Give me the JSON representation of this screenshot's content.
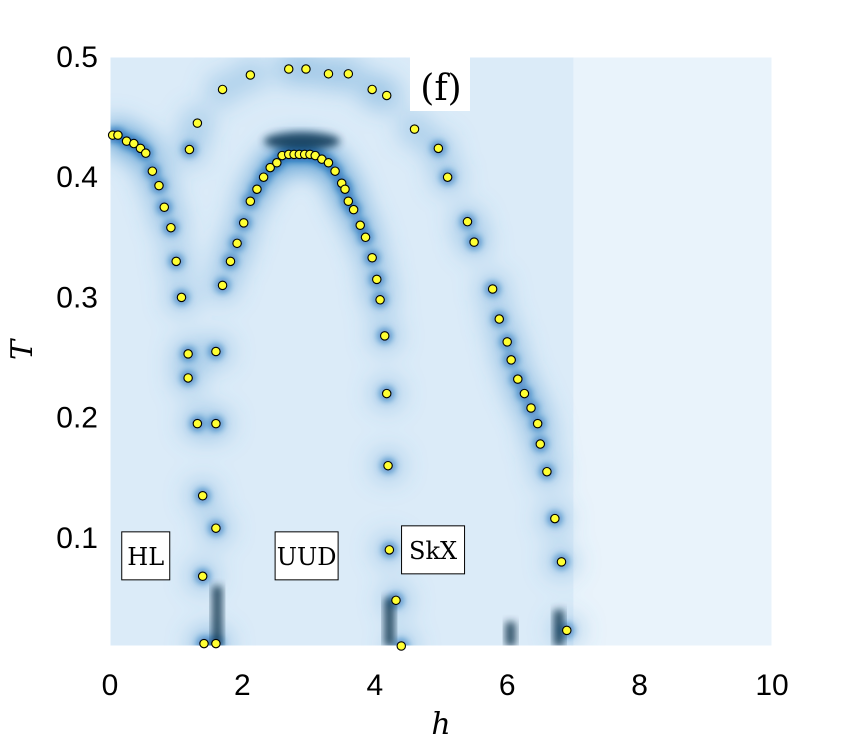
{
  "chart_data": {
    "type": "scatter",
    "panel_label": "(f)",
    "xlabel": "h",
    "ylabel": "T",
    "xlim": [
      0,
      10
    ],
    "ylim": [
      0.01,
      0.5
    ],
    "xticks": [
      "0",
      "2",
      "4",
      "6",
      "8",
      "10"
    ],
    "yticks": [
      "0.1",
      "0.2",
      "0.3",
      "0.4",
      "0.5"
    ],
    "region_labels": [
      {
        "text": "HL",
        "h": 0.54,
        "T": 0.085
      },
      {
        "text": "UUD",
        "h": 2.97,
        "T": 0.085
      },
      {
        "text": "SkX",
        "h": 4.88,
        "T": 0.09
      }
    ],
    "colors": {
      "background": "#e9f3fb",
      "marker_fill": "#ffff33",
      "marker_edge": "#000000",
      "peak": "#0b60b0"
    },
    "series": [
      {
        "points": [
          [
            0.04,
            0.435
          ],
          [
            0.12,
            0.435
          ],
          [
            0.25,
            0.43
          ],
          [
            0.36,
            0.428
          ],
          [
            0.46,
            0.424
          ],
          [
            0.54,
            0.42
          ],
          [
            0.64,
            0.405
          ],
          [
            0.74,
            0.393
          ],
          [
            0.82,
            0.375
          ],
          [
            0.92,
            0.358
          ],
          [
            1.0,
            0.33
          ],
          [
            1.08,
            0.3
          ],
          [
            1.18,
            0.253
          ],
          [
            1.18,
            0.233
          ],
          [
            1.32,
            0.195
          ],
          [
            1.4,
            0.135
          ],
          [
            1.4,
            0.068
          ],
          [
            1.42,
            0.012
          ],
          [
            1.6,
            0.012
          ],
          [
            1.6,
            0.108
          ],
          [
            1.6,
            0.195
          ],
          [
            1.6,
            0.255
          ],
          [
            1.7,
            0.31
          ],
          [
            1.82,
            0.33
          ],
          [
            1.92,
            0.345
          ],
          [
            2.02,
            0.362
          ],
          [
            2.12,
            0.38
          ],
          [
            2.22,
            0.39
          ],
          [
            2.32,
            0.4
          ],
          [
            2.42,
            0.408
          ],
          [
            2.52,
            0.412
          ],
          [
            2.6,
            0.418
          ],
          [
            2.7,
            0.419
          ],
          [
            2.78,
            0.419
          ],
          [
            2.86,
            0.419
          ],
          [
            2.94,
            0.419
          ],
          [
            3.02,
            0.419
          ],
          [
            3.1,
            0.418
          ],
          [
            3.2,
            0.415
          ],
          [
            3.3,
            0.412
          ],
          [
            3.4,
            0.405
          ],
          [
            3.5,
            0.395
          ],
          [
            3.55,
            0.39
          ],
          [
            3.6,
            0.38
          ],
          [
            3.68,
            0.373
          ],
          [
            3.78,
            0.36
          ],
          [
            3.86,
            0.35
          ],
          [
            3.96,
            0.333
          ],
          [
            4.03,
            0.315
          ],
          [
            4.08,
            0.298
          ],
          [
            4.15,
            0.268
          ],
          [
            4.18,
            0.22
          ],
          [
            4.2,
            0.16
          ],
          [
            4.22,
            0.09
          ],
          [
            4.32,
            0.048
          ],
          [
            4.4,
            0.01
          ],
          [
            1.2,
            0.423
          ],
          [
            1.32,
            0.445
          ],
          [
            1.7,
            0.473
          ],
          [
            2.12,
            0.485
          ],
          [
            2.7,
            0.49
          ],
          [
            2.96,
            0.49
          ],
          [
            3.3,
            0.486
          ],
          [
            3.6,
            0.486
          ],
          [
            3.96,
            0.473
          ],
          [
            4.18,
            0.468
          ],
          [
            4.6,
            0.44
          ],
          [
            4.96,
            0.424
          ],
          [
            5.1,
            0.4
          ],
          [
            5.4,
            0.363
          ],
          [
            5.5,
            0.346
          ],
          [
            5.78,
            0.307
          ],
          [
            5.88,
            0.282
          ],
          [
            6.0,
            0.263
          ],
          [
            6.06,
            0.248
          ],
          [
            6.16,
            0.232
          ],
          [
            6.26,
            0.22
          ],
          [
            6.36,
            0.208
          ],
          [
            6.46,
            0.195
          ],
          [
            6.5,
            0.178
          ],
          [
            6.6,
            0.155
          ],
          [
            6.72,
            0.116
          ],
          [
            6.82,
            0.08
          ],
          [
            6.9,
            0.023
          ]
        ]
      }
    ]
  }
}
